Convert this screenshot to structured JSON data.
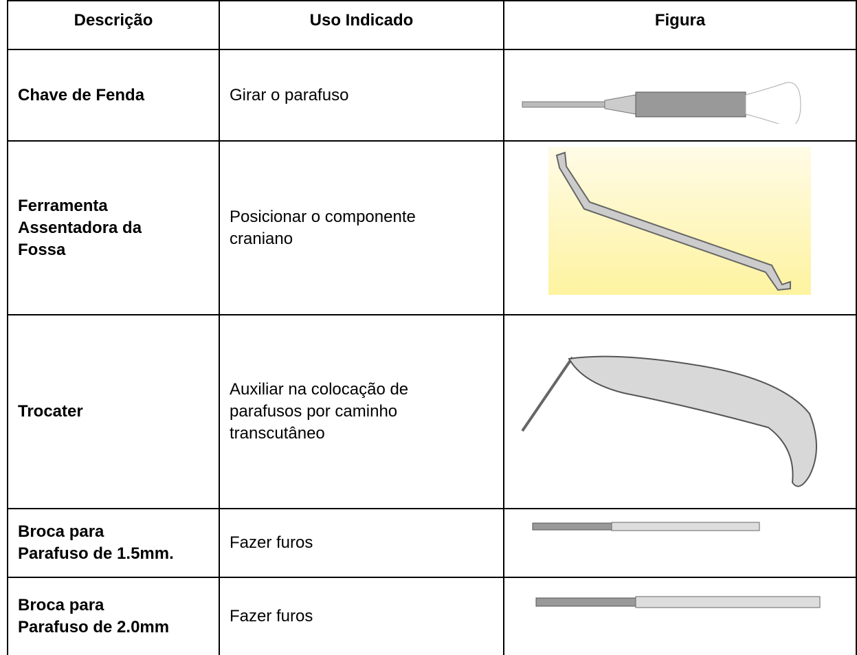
{
  "table": {
    "header": [
      "Descrição",
      "Uso Indicado",
      "Figura"
    ],
    "rows": [
      {
        "description": [
          "Chave de Fenda"
        ],
        "use": [
          "Girar o parafuso"
        ]
      },
      {
        "description": [
          "Ferramenta",
          "Assentadora da",
          "Fossa"
        ],
        "use": [
          "Posicionar o componente",
          "craniano"
        ]
      },
      {
        "description": [
          "Trocater"
        ],
        "use": [
          "Auxiliar na colocação de",
          "parafusos por caminho",
          "transcutâneo"
        ]
      },
      {
        "description": [
          "Broca para",
          "Parafuso de 1.5mm."
        ],
        "use": [
          "Fazer furos"
        ]
      },
      {
        "description": [
          "Broca para",
          "Parafuso de 2.0mm"
        ],
        "use": [
          "Fazer furos"
        ]
      }
    ]
  }
}
